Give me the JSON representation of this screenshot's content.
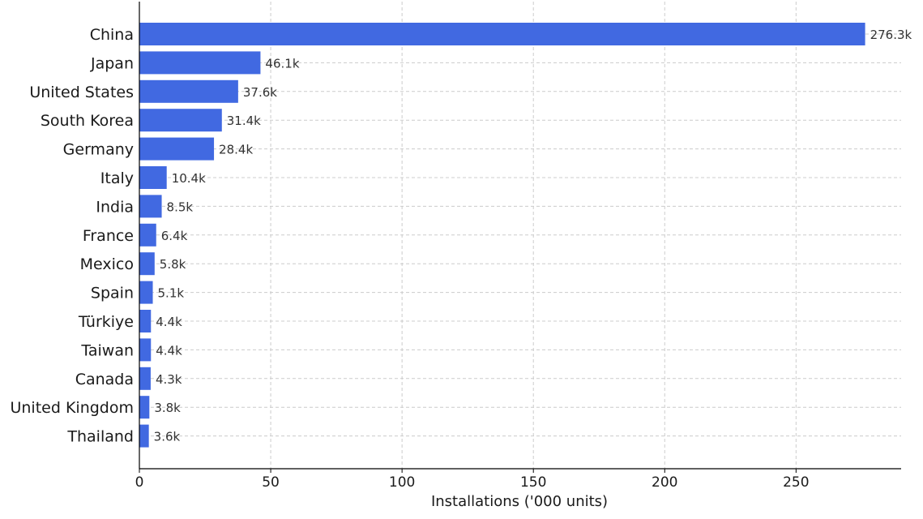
{
  "chart_data": {
    "type": "bar",
    "orientation": "horizontal",
    "title": "",
    "xlabel": "Installations ('000 units)",
    "ylabel": "",
    "xlim": [
      0,
      290
    ],
    "x_ticks": [
      0,
      50,
      100,
      150,
      200,
      250
    ],
    "grid": true,
    "bar_color": "#4169e1",
    "categories": [
      "China",
      "Japan",
      "United States",
      "South Korea",
      "Germany",
      "Italy",
      "India",
      "France",
      "Mexico",
      "Spain",
      "Türkiye",
      "Taiwan",
      "Canada",
      "United Kingdom",
      "Thailand"
    ],
    "values": [
      276.3,
      46.1,
      37.6,
      31.4,
      28.4,
      10.4,
      8.5,
      6.4,
      5.8,
      5.1,
      4.4,
      4.4,
      4.3,
      3.8,
      3.6
    ],
    "value_labels": [
      "276.3k",
      "46.1k",
      "37.6k",
      "31.4k",
      "28.4k",
      "10.4k",
      "8.5k",
      "6.4k",
      "5.8k",
      "5.1k",
      "4.4k",
      "4.4k",
      "4.3k",
      "3.8k",
      "3.6k"
    ]
  }
}
